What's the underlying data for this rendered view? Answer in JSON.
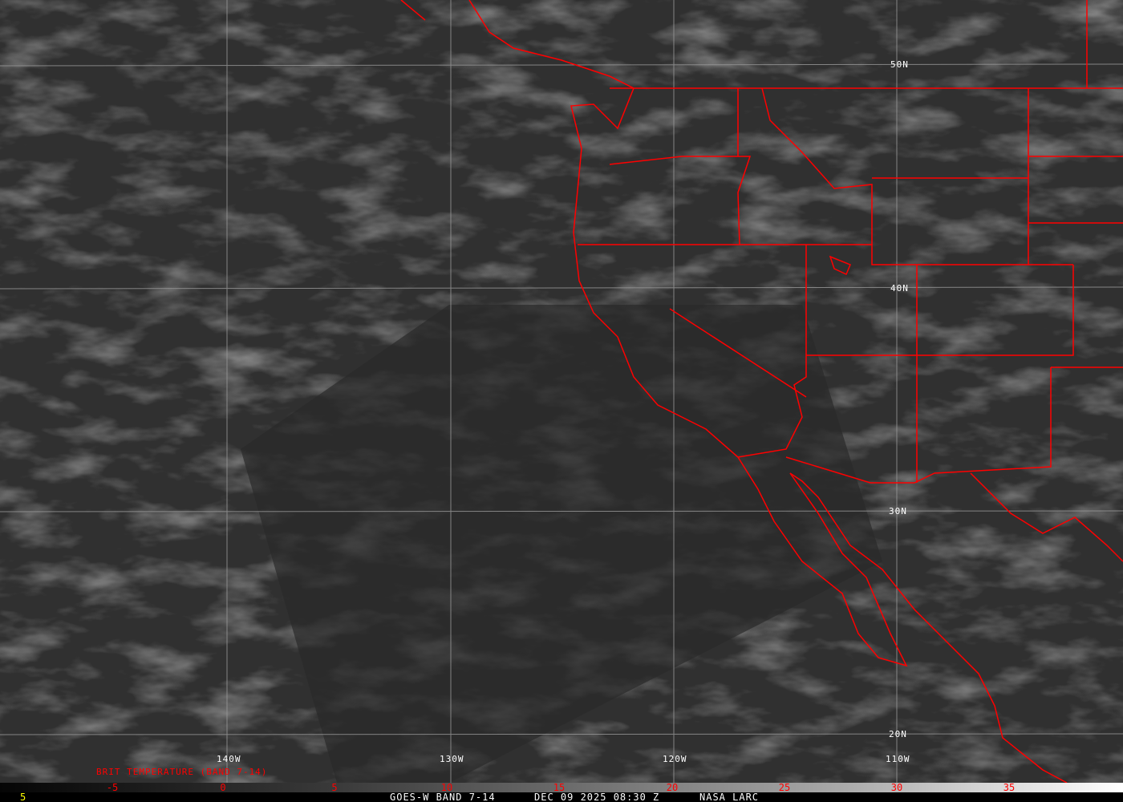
{
  "map": {
    "product_title": "BRIT TEMPERATURE (BAND 7-14)",
    "lat_labels": [
      "50N",
      "40N",
      "30N",
      "20N"
    ],
    "lon_labels": [
      "140W",
      "130W",
      "120W",
      "110W"
    ],
    "colorbar": {
      "ticks": [
        "-5",
        "0",
        "5",
        "10",
        "15",
        "20",
        "25",
        "30",
        "35"
      ],
      "range": [
        -10,
        40
      ],
      "tick_color": "#ff0000"
    },
    "boundary_color": "#ff0000",
    "footer": {
      "left_value": "5",
      "satellite": "GOES-W BAND 7-14",
      "datetime": "DEC 09 2025 08:30 Z",
      "source": "NASA LARC"
    }
  }
}
